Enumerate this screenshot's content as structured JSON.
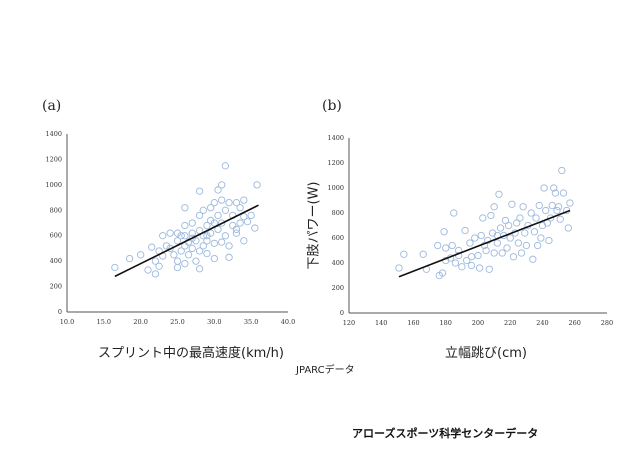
{
  "chart_data": [
    {
      "type": "scatter",
      "panel": "(a)",
      "xlabel": "スプリント中の最高速度(km/h)",
      "ylabel": "",
      "xlim": [
        10,
        40
      ],
      "ylim": [
        0,
        1400
      ],
      "xticks": [
        "10.0",
        "15.0",
        "20.0",
        "25.0",
        "30.0",
        "35.0",
        "40.0"
      ],
      "yticks": [
        "0",
        "200",
        "400",
        "600",
        "800",
        "1000",
        "1200",
        "1400"
      ],
      "grid": false,
      "trendline": [
        [
          16.5,
          280
        ],
        [
          36,
          840
        ]
      ],
      "points": [
        [
          16.5,
          350
        ],
        [
          18.5,
          420
        ],
        [
          20,
          450
        ],
        [
          21,
          330
        ],
        [
          21.5,
          510
        ],
        [
          22,
          300
        ],
        [
          22,
          400
        ],
        [
          22.5,
          480
        ],
        [
          23,
          600
        ],
        [
          23.5,
          520
        ],
        [
          24,
          620
        ],
        [
          24.5,
          450
        ],
        [
          25,
          350
        ],
        [
          25,
          400
        ],
        [
          25,
          560
        ],
        [
          25.5,
          480
        ],
        [
          25.5,
          600
        ],
        [
          26,
          820
        ],
        [
          26,
          520
        ],
        [
          26,
          380
        ],
        [
          26,
          680
        ],
        [
          26.5,
          550
        ],
        [
          26.5,
          450
        ],
        [
          27,
          620
        ],
        [
          27,
          500
        ],
        [
          27,
          700
        ],
        [
          27.5,
          400
        ],
        [
          27.5,
          560
        ],
        [
          28,
          950
        ],
        [
          28,
          340
        ],
        [
          28,
          640
        ],
        [
          28,
          760
        ],
        [
          28.5,
          520
        ],
        [
          28.5,
          800
        ],
        [
          28.5,
          600
        ],
        [
          29,
          680
        ],
        [
          29,
          460
        ],
        [
          29,
          560
        ],
        [
          29.5,
          720
        ],
        [
          29.5,
          820
        ],
        [
          29.5,
          620
        ],
        [
          30,
          420
        ],
        [
          30,
          540
        ],
        [
          30,
          860
        ],
        [
          30.5,
          960
        ],
        [
          30.5,
          650
        ],
        [
          30.5,
          760
        ],
        [
          31,
          1000
        ],
        [
          31,
          700
        ],
        [
          31,
          550
        ],
        [
          31.5,
          1150
        ],
        [
          31.5,
          600
        ],
        [
          31.5,
          800
        ],
        [
          32,
          430
        ],
        [
          32,
          860
        ],
        [
          32,
          520
        ],
        [
          32.5,
          680
        ],
        [
          32.5,
          760
        ],
        [
          33,
          860
        ],
        [
          33,
          650
        ],
        [
          33.5,
          820
        ],
        [
          33.5,
          700
        ],
        [
          34,
          880
        ],
        [
          34,
          560
        ],
        [
          34.5,
          710
        ],
        [
          35,
          760
        ],
        [
          35.5,
          660
        ],
        [
          35.8,
          1000
        ],
        [
          24,
          500
        ],
        [
          23,
          440
        ],
        [
          27,
          580
        ],
        [
          29,
          600
        ],
        [
          26,
          600
        ],
        [
          30,
          700
        ],
        [
          28,
          480
        ],
        [
          25,
          620
        ],
        [
          31,
          880
        ],
        [
          33,
          620
        ],
        [
          34,
          750
        ],
        [
          22.5,
          360
        ]
      ]
    },
    {
      "type": "scatter",
      "panel": "(b)",
      "xlabel": "立幅跳び(cm)",
      "ylabel": "下肢パワー(W)",
      "xlim": [
        120,
        280
      ],
      "ylim": [
        0,
        1400
      ],
      "xticks": [
        "120",
        "140",
        "160",
        "180",
        "200",
        "220",
        "240",
        "260",
        "280"
      ],
      "yticks": [
        "0",
        "200",
        "400",
        "600",
        "800",
        "1000",
        "1200",
        "1400"
      ],
      "grid": false,
      "trendline": [
        [
          151,
          290
        ],
        [
          257,
          820
        ]
      ],
      "points": [
        [
          151,
          360
        ],
        [
          154,
          470
        ],
        [
          166,
          470
        ],
        [
          168,
          350
        ],
        [
          175,
          540
        ],
        [
          176,
          300
        ],
        [
          178,
          320
        ],
        [
          179,
          650
        ],
        [
          180,
          520
        ],
        [
          183,
          440
        ],
        [
          184,
          540
        ],
        [
          185,
          800
        ],
        [
          186,
          400
        ],
        [
          188,
          460
        ],
        [
          190,
          370
        ],
        [
          192,
          660
        ],
        [
          193,
          420
        ],
        [
          195,
          560
        ],
        [
          196,
          380
        ],
        [
          198,
          600
        ],
        [
          200,
          460
        ],
        [
          201,
          360
        ],
        [
          202,
          620
        ],
        [
          203,
          760
        ],
        [
          205,
          500
        ],
        [
          206,
          580
        ],
        [
          207,
          350
        ],
        [
          208,
          780
        ],
        [
          209,
          640
        ],
        [
          210,
          850
        ],
        [
          210,
          480
        ],
        [
          212,
          560
        ],
        [
          213,
          950
        ],
        [
          214,
          680
        ],
        [
          215,
          480
        ],
        [
          216,
          620
        ],
        [
          217,
          740
        ],
        [
          218,
          520
        ],
        [
          219,
          700
        ],
        [
          220,
          600
        ],
        [
          221,
          870
        ],
        [
          222,
          450
        ],
        [
          223,
          640
        ],
        [
          224,
          720
        ],
        [
          225,
          560
        ],
        [
          226,
          760
        ],
        [
          227,
          480
        ],
        [
          228,
          850
        ],
        [
          229,
          640
        ],
        [
          230,
          540
        ],
        [
          231,
          700
        ],
        [
          233,
          800
        ],
        [
          234,
          430
        ],
        [
          235,
          650
        ],
        [
          236,
          760
        ],
        [
          237,
          540
        ],
        [
          238,
          860
        ],
        [
          239,
          600
        ],
        [
          240,
          700
        ],
        [
          241,
          1000
        ],
        [
          242,
          820
        ],
        [
          243,
          720
        ],
        [
          244,
          580
        ],
        [
          245,
          760
        ],
        [
          246,
          860
        ],
        [
          247,
          1000
        ],
        [
          248,
          960
        ],
        [
          249,
          820
        ],
        [
          250,
          850
        ],
        [
          251,
          750
        ],
        [
          252,
          1140
        ],
        [
          253,
          960
        ],
        [
          255,
          820
        ],
        [
          256,
          680
        ],
        [
          257,
          880
        ],
        [
          196,
          450
        ],
        [
          204,
          540
        ],
        [
          212,
          620
        ],
        [
          188,
          500
        ],
        [
          180,
          420
        ]
      ]
    }
  ],
  "note": "JPARCデータ",
  "credit": "アローズスポーツ科学センターデータ",
  "colors": {
    "point": "#9db8dc",
    "axis": "#555555",
    "trend": "#111111"
  }
}
